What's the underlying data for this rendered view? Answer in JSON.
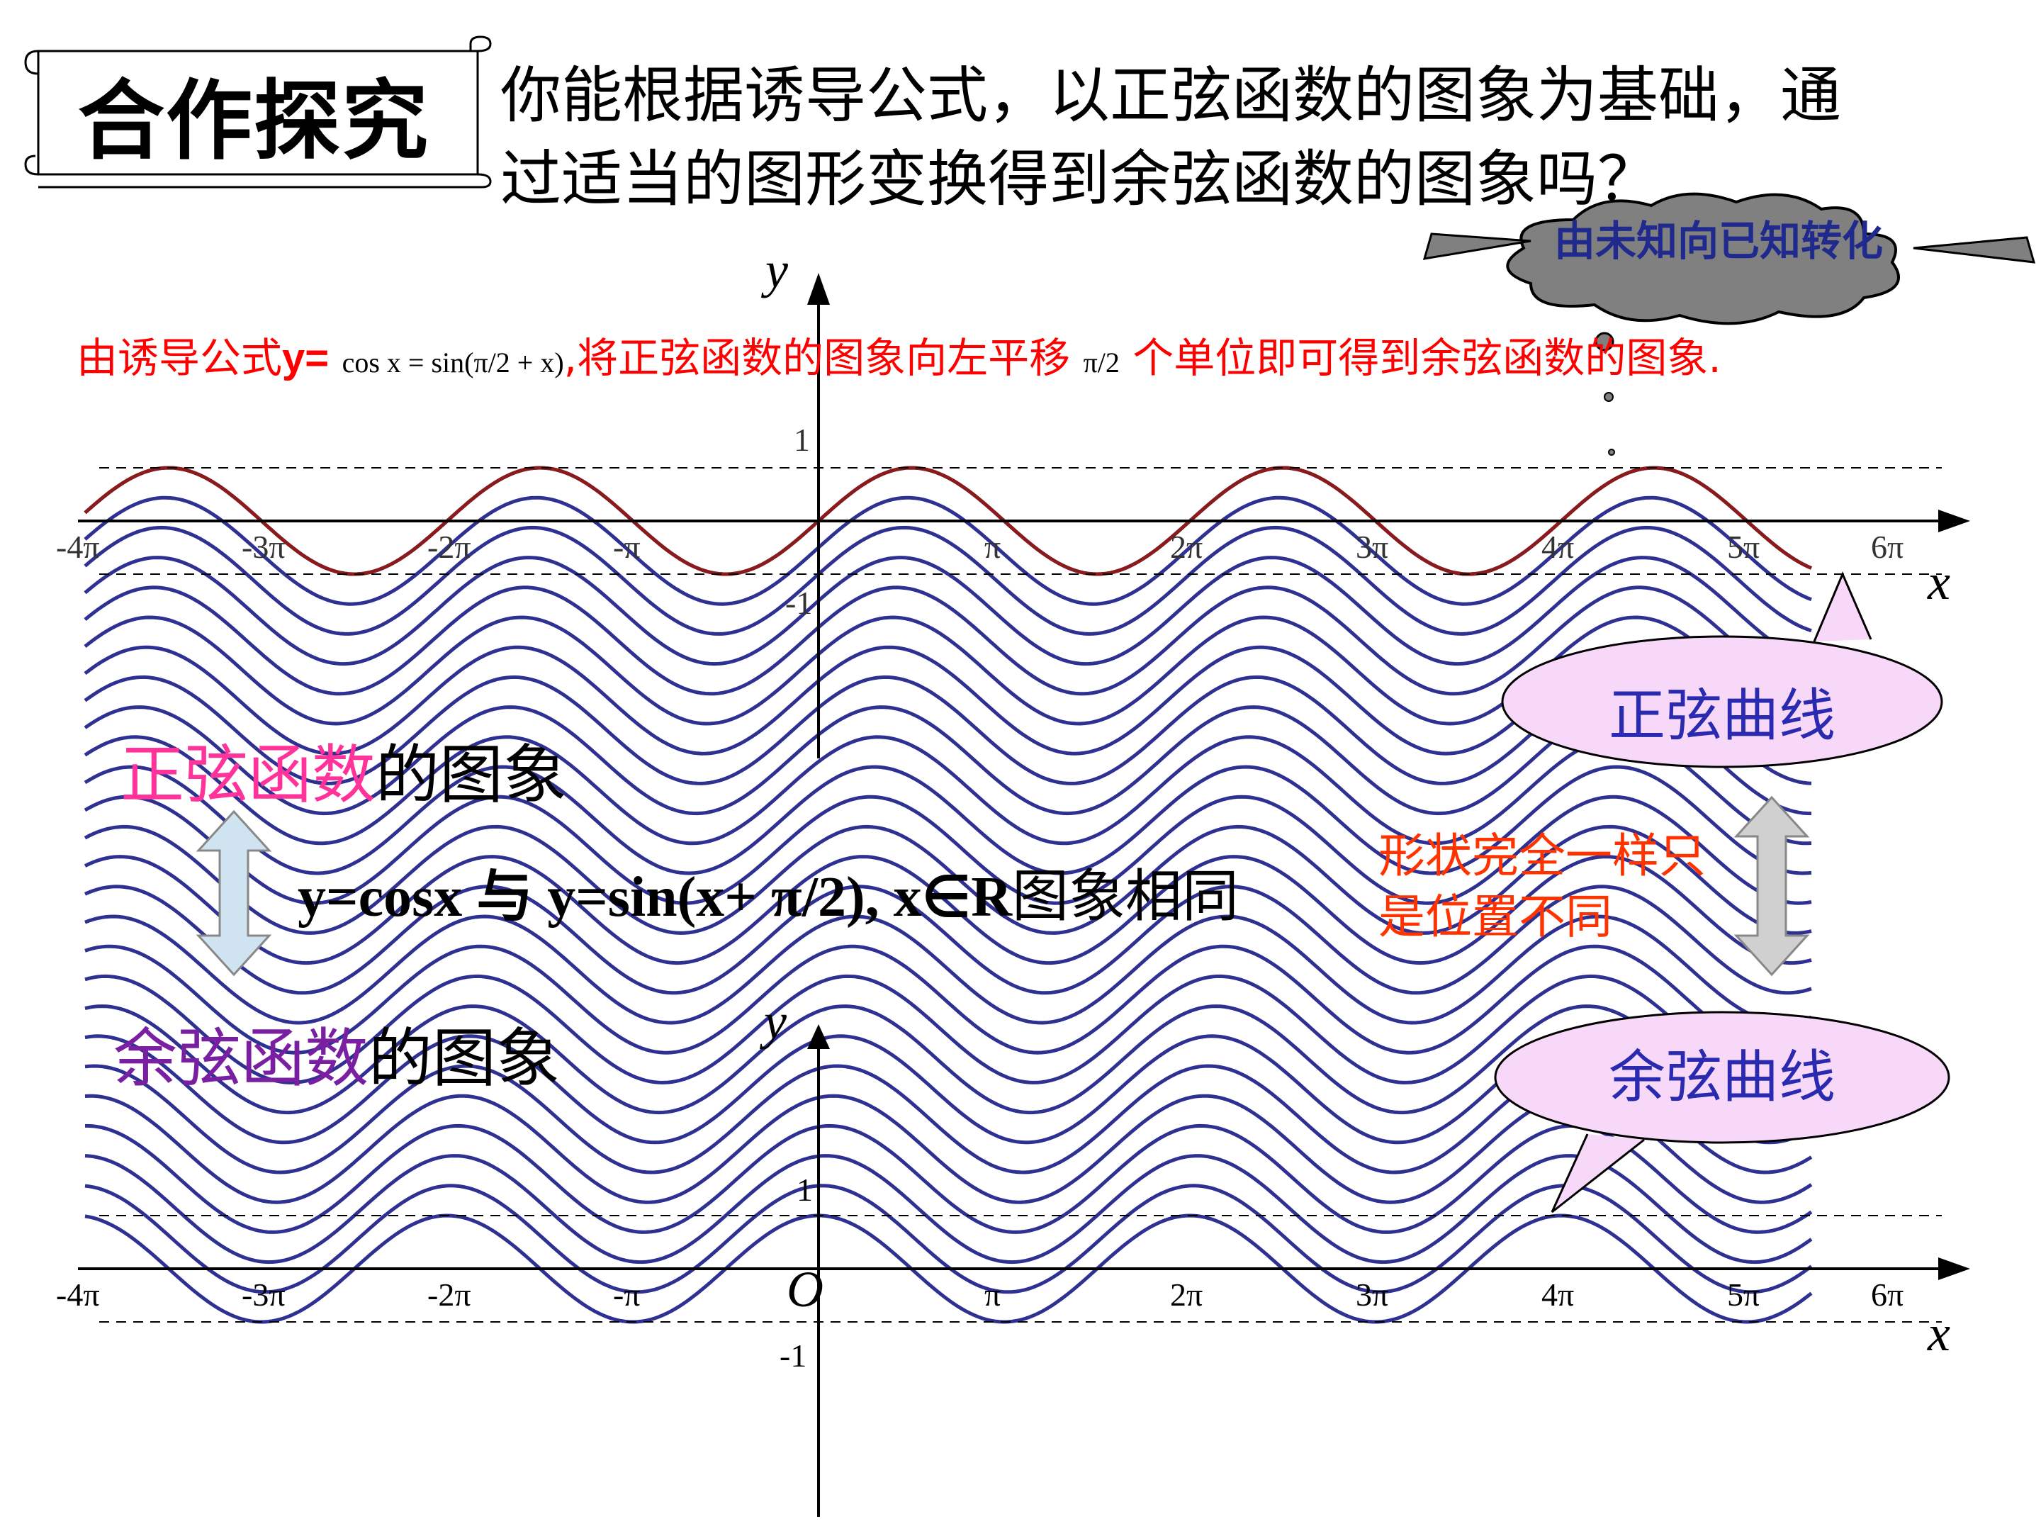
{
  "title": "合作探究",
  "question": {
    "line1": "你能根据诱导公式，以正弦函数的图象为基础，通",
    "line2": "过适当的图形变换得到余弦函数的图象吗？"
  },
  "cloud": {
    "text": "由未知向已知转化"
  },
  "derivation": {
    "prefix": "由诱导公式",
    "y_eq": "y=",
    "formula": "cos x = sin(π/2 + x)",
    "middle": ",将正弦函数的图象向左平移",
    "shift": "π/2",
    "suffix": " 个单位即可得到余弦函数的图象."
  },
  "labels": {
    "sine_graph_a": "正弦函数",
    "sine_graph_b": "的图象",
    "cos_graph_a": "余弦函数",
    "cos_graph_b": "的图象",
    "equation": "y=cosx 与 y=sin(x+ π/2), x∈R",
    "equation_suffix": "图象相同",
    "note": "形状完全一样只是位置不同",
    "sine_curve": "正弦曲线",
    "cosine_curve": "余弦曲线"
  },
  "axes": {
    "y": "y",
    "x": "x",
    "origin": "O",
    "one": "1",
    "neg_one": "-1",
    "ticks": [
      "-4π",
      "-3π",
      "-2π",
      "-π",
      "π",
      "2π",
      "3π",
      "4π",
      "5π",
      "6π"
    ]
  },
  "colors": {
    "curve": "#2e3192",
    "sine_curve": "#8b1a1a",
    "red_text": "#ff0000",
    "pink": "#ff3399",
    "purple": "#7a1fa2",
    "note": "#ff3300",
    "bubble_fill": "#f8d8f8",
    "cloud_fill": "#808080",
    "cloud_text": "#1f2a8c"
  }
}
